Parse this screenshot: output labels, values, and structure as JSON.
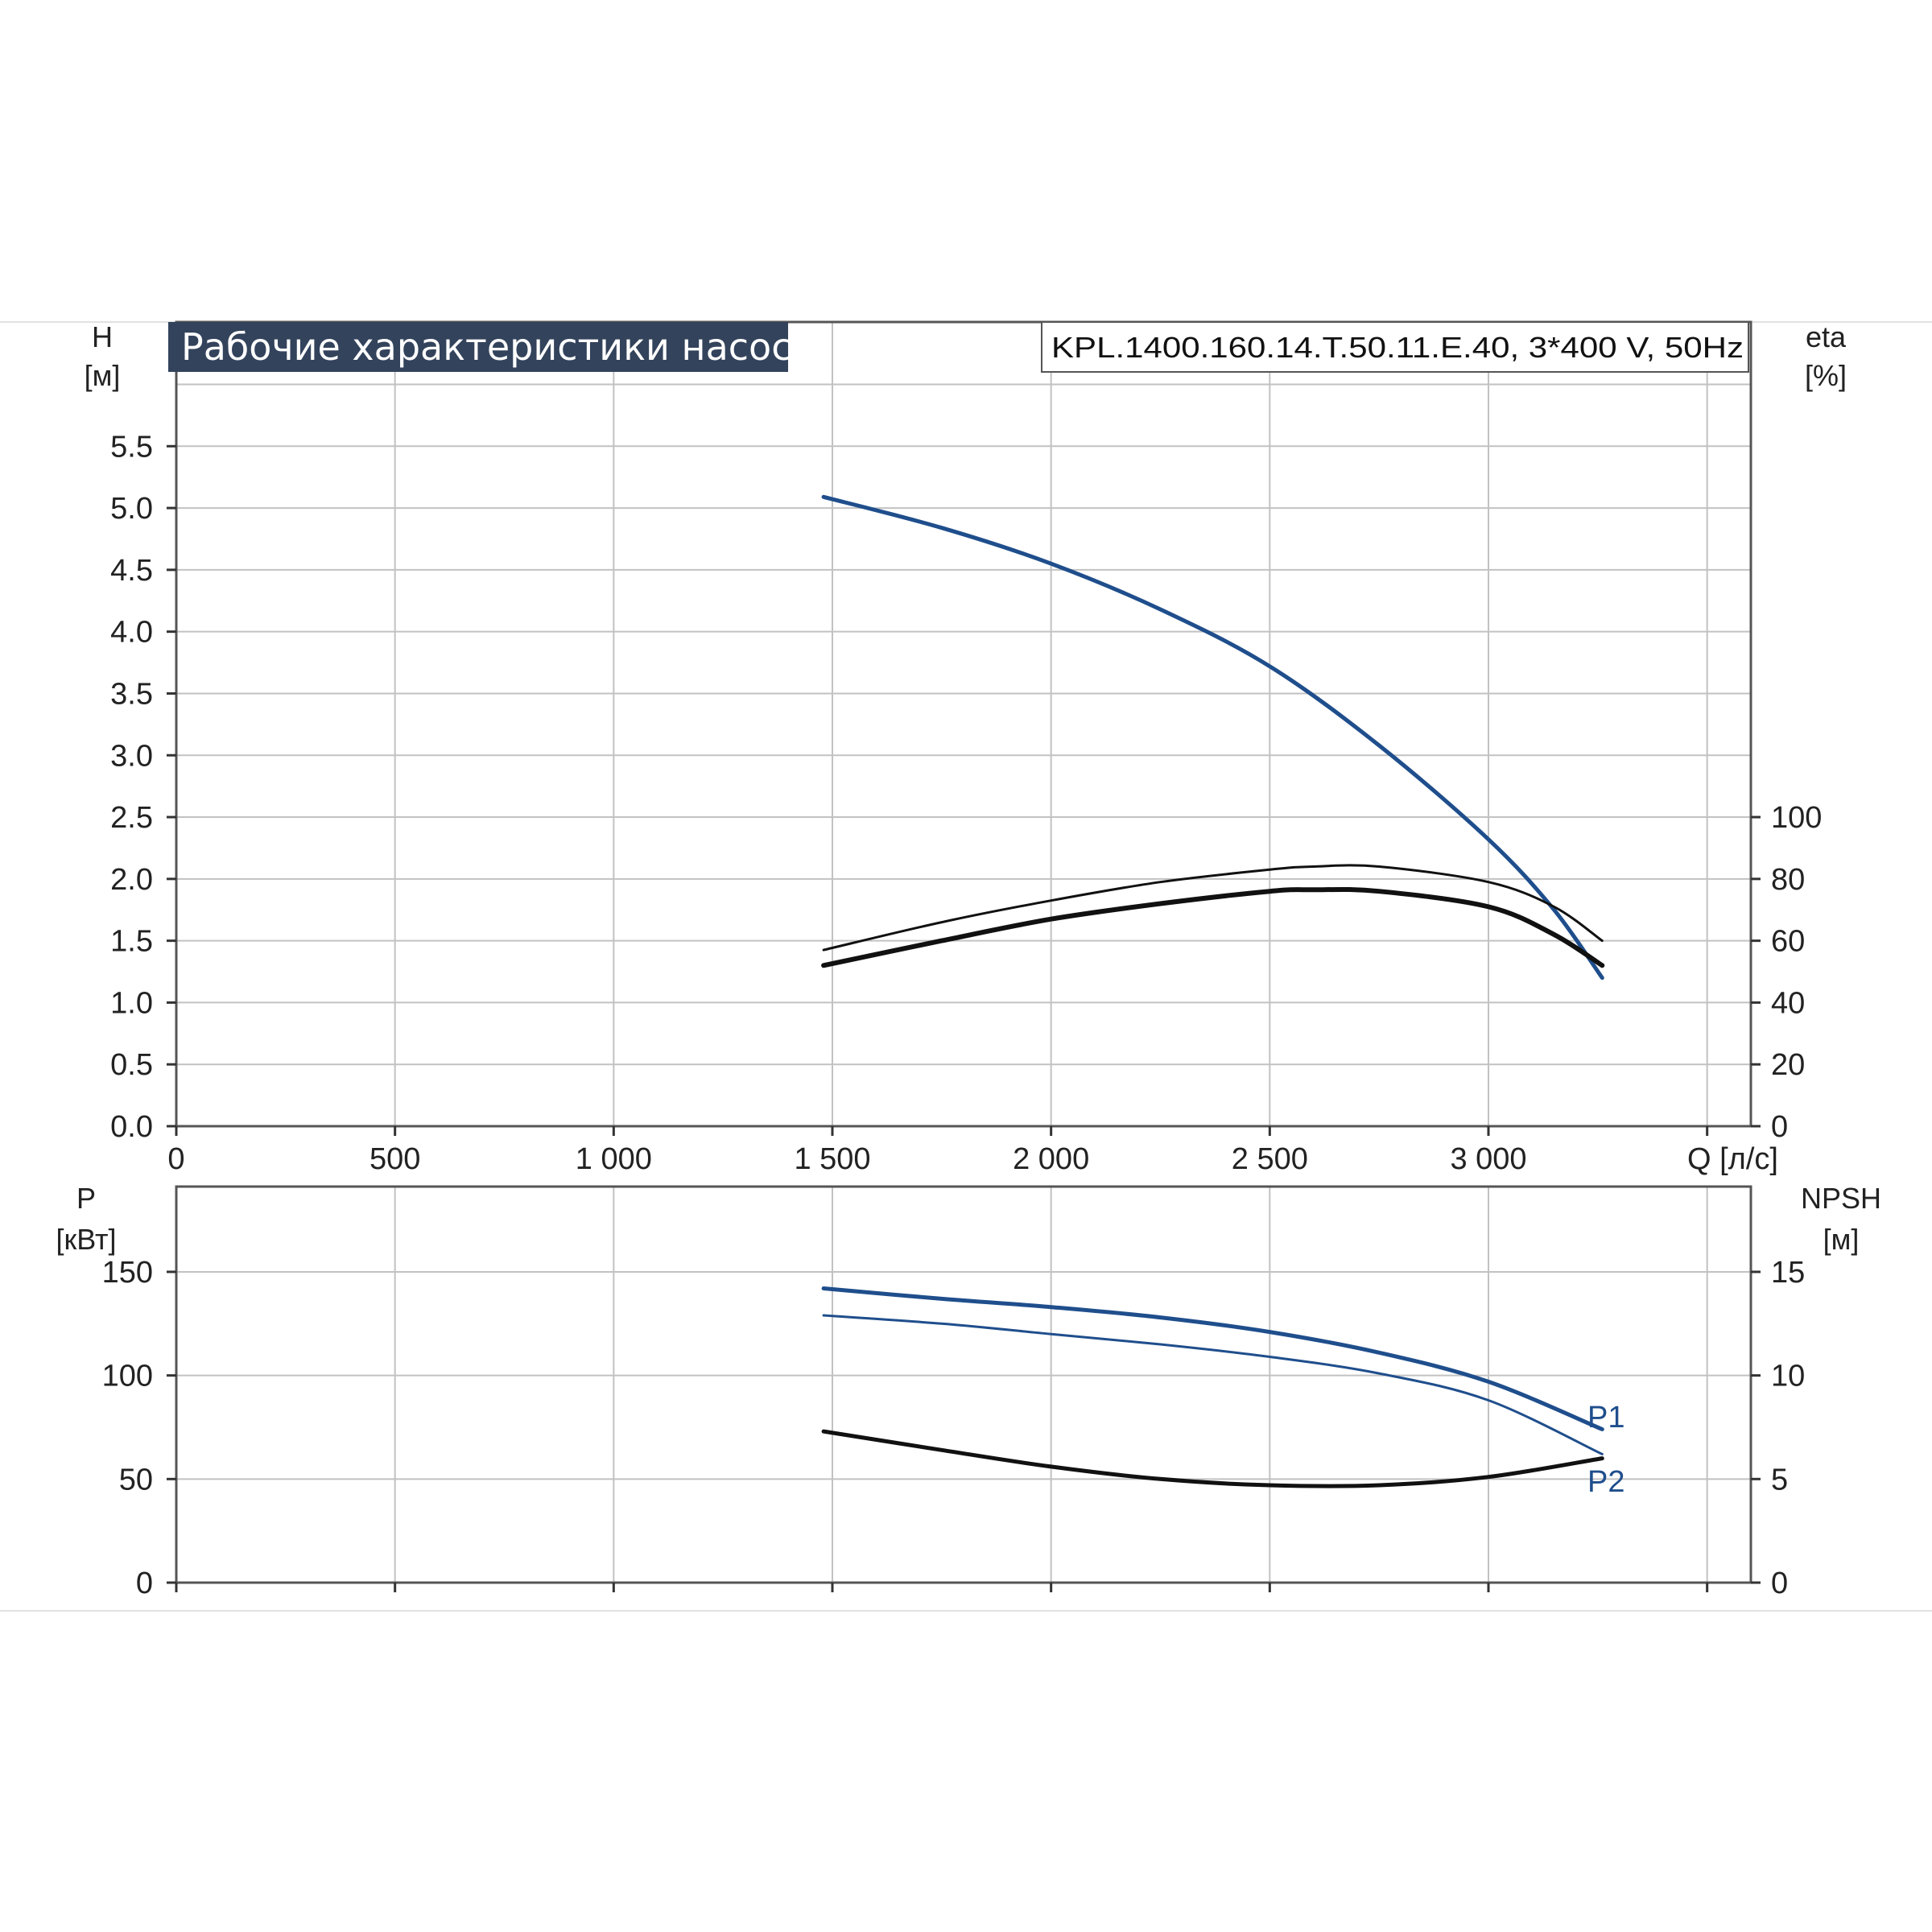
{
  "title": "Рабочие характеристики насоса",
  "model": "KPL.1400.160.14.T.50.11.E.40, 3*400 V, 50Hz",
  "colors": {
    "blue": "#1f4e8c",
    "black": "#111111",
    "title_bg": "#33435c"
  },
  "chart_data": [
    {
      "type": "line",
      "x_label": "Q [л/с]",
      "xlim": [
        0,
        3600
      ],
      "x_ticks": [
        0,
        500,
        1000,
        1500,
        2000,
        2500,
        3000
      ],
      "x_tick_labels": [
        "0",
        "500",
        "1 000",
        "1 500",
        "2 000",
        "2 500",
        "3 000"
      ],
      "y_label": "H",
      "y_unit": "[м]",
      "ylim": [
        0,
        6
      ],
      "y_ticks": [
        0,
        0.5,
        1.0,
        1.5,
        2.0,
        2.5,
        3.0,
        3.5,
        4.0,
        4.5,
        5.0,
        5.5
      ],
      "y_tick_labels": [
        "0.0",
        "0.5",
        "1.0",
        "1.5",
        "2.0",
        "2.5",
        "3.0",
        "3.5",
        "4.0",
        "4.5",
        "5.0",
        "5.5"
      ],
      "y2_label": "eta",
      "y2_unit": "[%]",
      "y2lim": [
        0,
        240
      ],
      "y2_ticks": [
        0,
        20,
        40,
        60,
        80,
        100
      ],
      "y2_tick_labels": [
        "0",
        "20",
        "40",
        "60",
        "80",
        "100"
      ],
      "grid": true,
      "series": [
        {
          "axis": "y",
          "color": "#1f4e8c",
          "width": 5,
          "x": [
            1480,
            1750,
            2000,
            2250,
            2500,
            2750,
            3000,
            3150,
            3260
          ],
          "y": [
            5.09,
            4.84,
            4.55,
            4.18,
            3.72,
            3.08,
            2.32,
            1.75,
            1.2
          ]
        },
        {
          "axis": "y2",
          "color": "#111111",
          "width": 3,
          "x": [
            1480,
            1750,
            2000,
            2250,
            2500,
            2600,
            2750,
            3000,
            3150,
            3260
          ],
          "y": [
            57,
            66,
            73,
            79,
            83,
            84,
            84,
            79,
            71,
            60
          ]
        },
        {
          "axis": "y2",
          "color": "#111111",
          "width": 6,
          "x": [
            1480,
            1750,
            2000,
            2250,
            2500,
            2600,
            2750,
            3000,
            3150,
            3260
          ],
          "y": [
            52,
            60,
            67,
            72,
            76,
            76.5,
            76,
            71,
            62,
            52
          ]
        }
      ]
    },
    {
      "type": "line",
      "xlim": [
        0,
        3600
      ],
      "x_ticks": [
        0,
        500,
        1000,
        1500,
        2000,
        2500,
        3000
      ],
      "y_label": "P",
      "y_unit": "[кВт]",
      "ylim": [
        0,
        190
      ],
      "y_ticks": [
        0,
        50,
        100,
        150
      ],
      "y_tick_labels": [
        "0",
        "50",
        "100",
        "150"
      ],
      "y2_label": "NPSH",
      "y2_unit": "[м]",
      "y2lim": [
        0,
        19
      ],
      "y2_ticks": [
        0,
        5,
        10,
        15
      ],
      "y2_tick_labels": [
        "0",
        "5",
        "10",
        "15"
      ],
      "grid": true,
      "series": [
        {
          "name": "P1",
          "axis": "y",
          "color": "#1f4e8c",
          "width": 5,
          "x": [
            1480,
            1750,
            2000,
            2250,
            2500,
            2750,
            3000,
            3260
          ],
          "y": [
            142,
            137,
            133,
            128,
            121,
            111,
            97,
            74
          ]
        },
        {
          "name": "P2",
          "axis": "y",
          "color": "#1f4e8c",
          "width": 3,
          "x": [
            1480,
            1750,
            2000,
            2250,
            2500,
            2750,
            3000,
            3260
          ],
          "y": [
            129,
            125,
            120,
            115,
            109,
            101,
            88,
            62
          ]
        },
        {
          "axis": "y2",
          "color": "#111111",
          "width": 5,
          "x": [
            1480,
            1750,
            2000,
            2250,
            2500,
            2750,
            3000,
            3260
          ],
          "y": [
            7.3,
            6.4,
            5.6,
            5.0,
            4.7,
            4.7,
            5.1,
            6.0
          ]
        }
      ]
    }
  ]
}
